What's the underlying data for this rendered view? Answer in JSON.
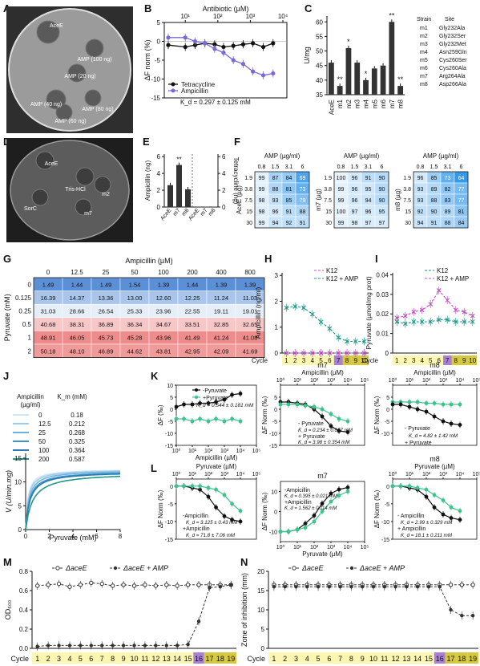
{
  "panels": [
    {
      "id": "A",
      "kind": "photo",
      "labels": [
        "AceE",
        "AMP (100 ng)",
        "AMP (20 ng)",
        "AMP (40 ng)",
        "AMP (80 ng)",
        "AMP (60 ng)"
      ]
    },
    {
      "id": "B",
      "kind": "line",
      "x_top_label": "Antibiotic (µM)",
      "x_ticks": [
        "10¹",
        "10²",
        "10³",
        "10⁴"
      ],
      "y_label": "ΔF norm (%)",
      "y_ticks": [
        "5",
        "0",
        "-5",
        "-10",
        "-15"
      ],
      "series": [
        {
          "name": "Tetracycline",
          "color": "#111111",
          "x": [
            3,
            10,
            20,
            40,
            80,
            150,
            300,
            600,
            1200,
            2500,
            5000
          ],
          "y": [
            -1,
            -1.5,
            -1,
            -0.5,
            -0.8,
            -1.5,
            -1.2,
            -0.8,
            -0.5,
            -1.5,
            -0.5
          ]
        },
        {
          "name": "Ampicillin",
          "color": "#7b68d8",
          "x": [
            3,
            10,
            20,
            40,
            80,
            150,
            300,
            600,
            1200,
            2500,
            5000
          ],
          "y": [
            1,
            1,
            0,
            -0.5,
            -2,
            -3,
            -5,
            -6,
            -8,
            -9,
            -8.5
          ]
        }
      ],
      "kd": "K_d = 0.297 ± 0.125 mM"
    },
    {
      "id": "C",
      "kind": "bar",
      "y_label": "U/mg",
      "y_ticks": [
        "60",
        "55",
        "50",
        "45",
        "40",
        "35"
      ],
      "categories": [
        "AceE",
        "m1",
        "m2",
        "m3",
        "m4",
        "m5",
        "m6",
        "m7",
        "m8"
      ],
      "values": [
        46,
        38,
        51,
        46,
        40,
        44,
        45,
        60,
        38
      ],
      "sig": [
        "",
        "**",
        "*",
        "",
        "*",
        "",
        "",
        "**",
        "**"
      ],
      "table_header": [
        "Strain",
        "Site"
      ],
      "table": [
        [
          "m1",
          "Gly232Ala"
        ],
        [
          "m2",
          "Gly232Ser"
        ],
        [
          "m3",
          "Gly232Met"
        ],
        [
          "m4",
          "Asn259Gln"
        ],
        [
          "m5",
          "Cys260Ser"
        ],
        [
          "m6",
          "Cys260Ala"
        ],
        [
          "m7",
          "Arg264Ala"
        ],
        [
          "m8",
          "Asp266Ala"
        ]
      ]
    },
    {
      "id": "D",
      "kind": "photo",
      "labels": [
        "AceE",
        "SorC",
        "Tris-HCl",
        "m2",
        "m7"
      ]
    },
    {
      "id": "E",
      "kind": "bar",
      "left_label": "Ampicillin (ng)",
      "right_label": "Tetracycline (ng)",
      "y_ticks": [
        "6",
        "4",
        "2",
        "0"
      ],
      "categories_left": [
        "AceE",
        "m7",
        "m8"
      ],
      "values_left": [
        2.6,
        5.0,
        2.1
      ],
      "sig_left": [
        "",
        "**",
        ""
      ],
      "categories_right": [
        "AceE",
        "m7",
        "m8"
      ],
      "values_right": [
        0,
        0,
        0
      ]
    },
    {
      "id": "F",
      "kind": "heatmap",
      "x_label": "AMP (µg/ml)",
      "x_ticks": [
        "0.8",
        "1.5",
        "3.1",
        "6"
      ],
      "y_ticks": [
        "1.9",
        "3.8",
        "7.5",
        "15",
        "30"
      ],
      "maps": [
        {
          "y_label": "AceE (µg)",
          "values": [
            [
              99,
              87,
              84,
              69
            ],
            [
              99,
              88,
              81,
              73
            ],
            [
              98,
              93,
              85,
              79
            ],
            [
              98,
              96,
              91,
              88
            ],
            [
              99,
              94,
              92,
              91
            ]
          ]
        },
        {
          "y_label": "m7 (µg)",
          "values": [
            [
              100,
              96,
              91,
              90
            ],
            [
              99,
              96,
              95,
              90
            ],
            [
              99,
              96,
              94,
              90
            ],
            [
              100,
              97,
              96,
              95
            ],
            [
              99,
              98,
              97,
              97
            ]
          ]
        },
        {
          "y_label": "m8 (µg)",
          "values": [
            [
              96,
              85,
              73,
              64
            ],
            [
              93,
              89,
              82,
              77
            ],
            [
              93,
              88,
              83,
              77
            ],
            [
              92,
              90,
              89,
              81
            ],
            [
              94,
              91,
              88,
              84
            ]
          ]
        }
      ]
    },
    {
      "id": "G",
      "kind": "heatmap",
      "x_label": "Ampicillin (µM)",
      "y_label": "Pyruvate (mM)",
      "x_ticks": [
        "0",
        "12.5",
        "25",
        "50",
        "100",
        "200",
        "400",
        "800"
      ],
      "y_ticks": [
        "0",
        "0.125",
        "0.25",
        "0.5",
        "1",
        "2"
      ],
      "values": [
        [
          1.49,
          1.44,
          1.49,
          1.54,
          1.39,
          1.44,
          1.39,
          1.39
        ],
        [
          16.39,
          14.37,
          13.36,
          13.0,
          12.6,
          12.25,
          11.24,
          11.03
        ],
        [
          31.03,
          28.66,
          26.54,
          25.33,
          23.96,
          22.55,
          19.11,
          19.01
        ],
        [
          40.68,
          38.31,
          36.89,
          36.34,
          34.67,
          33.51,
          32.85,
          32.65
        ],
        [
          48.91,
          46.05,
          45.73,
          45.28,
          43.96,
          41.49,
          41.24,
          41.08
        ],
        [
          50.18,
          48.1,
          46.89,
          44.62,
          43.81,
          42.95,
          42.09,
          41.69
        ]
      ]
    },
    {
      "id": "H",
      "kind": "line",
      "y_label": "Ampicillin (ng/ml)",
      "x_label": "Cycle",
      "y_ticks": [
        "3",
        "2",
        "1",
        "0"
      ],
      "x_ticks": [
        "1",
        "2",
        "3",
        "4",
        "5",
        "6",
        "7",
        "8",
        "9",
        "10"
      ],
      "series": [
        {
          "name": "K12",
          "color": "#c050c0",
          "x": [
            1,
            2,
            3,
            4,
            5,
            6,
            7,
            8,
            9,
            10
          ],
          "y": [
            0,
            0,
            0,
            0,
            0,
            0,
            0,
            0,
            0,
            0
          ]
        },
        {
          "name": "K12 + AMP",
          "color": "#1d9a86",
          "x": [
            1,
            2,
            3,
            4,
            5,
            6,
            7,
            8,
            9,
            10
          ],
          "y": [
            1.75,
            1.8,
            1.75,
            1.5,
            1.2,
            0.95,
            0.6,
            0.45,
            0.45,
            0.45
          ]
        }
      ]
    },
    {
      "id": "I",
      "kind": "line",
      "y_label": "Pyruvate (µmol/mg prot)",
      "x_label": "Cycle",
      "y_ticks": [
        "0.04",
        "0.03",
        "0.02",
        "0.01",
        "0"
      ],
      "x_ticks": [
        "1",
        "2",
        "3",
        "4",
        "5",
        "6",
        "7",
        "8",
        "9",
        "10"
      ],
      "series": [
        {
          "name": "K12",
          "color": "#1d9a86",
          "x": [
            1,
            2,
            3,
            4,
            5,
            6,
            7,
            8,
            9,
            10
          ],
          "y": [
            0.016,
            0.015,
            0.016,
            0.016,
            0.016,
            0.017,
            0.017,
            0.016,
            0.016,
            0.016
          ]
        },
        {
          "name": "K12 + AMP",
          "color": "#c050c0",
          "x": [
            1,
            2,
            3,
            4,
            5,
            6,
            7,
            8,
            9,
            10
          ],
          "y": [
            0.018,
            0.019,
            0.021,
            0.022,
            0.025,
            0.032,
            0.027,
            0.022,
            0.021,
            0.019
          ]
        }
      ]
    },
    {
      "id": "J",
      "kind": "line",
      "legend_title": "Ampicillin (µg/ml)",
      "km_header": "K_m (mM)",
      "y_label": "V (U/min.mg)",
      "x_label": "Pyruvate (mM)",
      "y_ticks": [
        "15",
        "10",
        "5",
        "0"
      ],
      "x_ticks": [
        "0",
        "2",
        "4",
        "6",
        "8"
      ],
      "series": [
        {
          "name": "0",
          "km": "0.18",
          "color": "#cfe5f5",
          "vmax": 12.7
        },
        {
          "name": "12.5",
          "km": "0.212",
          "color": "#9fcdeb",
          "vmax": 12.6
        },
        {
          "name": "25",
          "km": "0.268",
          "color": "#6cb4dd",
          "vmax": 12.5
        },
        {
          "name": "50",
          "km": "0.325",
          "color": "#3a95c9",
          "vmax": 12.3
        },
        {
          "name": "100",
          "km": "0.364",
          "color": "#2b7ab0",
          "vmax": 12.2
        },
        {
          "name": "200",
          "km": "0.587",
          "color": "#1d9a86",
          "vmax": 12.0
        }
      ]
    },
    {
      "id": "K",
      "kind": "line",
      "x_label": "Ampicillin (µM)",
      "y_label": "ΔF (‰)",
      "y_ticks": [
        "10",
        "5",
        "0",
        "-5",
        "-10",
        "-15"
      ],
      "legend": [
        "-Pyruvate",
        "+Pyruvate"
      ],
      "kd": "K_d = 0.544 ± 0.181 mM",
      "series": [
        {
          "name": "-Pyruvate",
          "color": "#111111",
          "x": [
            1,
            3,
            10,
            30,
            100,
            300,
            1000,
            3000,
            10000
          ],
          "y": [
            1,
            2,
            2,
            2.5,
            2.5,
            3,
            4,
            6,
            6.5
          ]
        },
        {
          "name": "+Pyruvate",
          "color": "#3cc48c",
          "x": [
            1,
            3,
            10,
            30,
            100,
            300,
            1000,
            3000,
            10000
          ],
          "y": [
            -4,
            -4,
            -5,
            -4,
            -5,
            -4,
            -5,
            -4,
            -5
          ]
        }
      ],
      "subpanels": [
        {
          "title": "m7",
          "x_label": "Ampicillin (µM)",
          "kd1": "K_d = 0.234 ± 0.067 mM",
          "kd2": "K_d = 3.98 ± 0.354 mM",
          "legend": [
            "- Pyruvate",
            "+ Pyruvate"
          ]
        },
        {
          "title": "m8",
          "x_label": "Ampicillin (µM)",
          "kd1": "K_d = 4.82 ± 1.42 mM",
          "legend": [
            "- Pyruvate",
            "+ Pyruvate"
          ]
        }
      ]
    },
    {
      "id": "L",
      "kind": "line",
      "x_label": "Pyruvate (µM)",
      "y_label": "ΔF Norm (‰)",
      "y_ticks": [
        "0",
        "-5",
        "-10",
        "-15"
      ],
      "legend": [
        "-Ampicillin",
        "+Ampicillin"
      ],
      "kd1": "K_d = 3.125 ± 0.43 mM",
      "kd2": "K_d = 71.8 ± 7.06 mM",
      "series": [
        {
          "name": "-Ampicillin",
          "color": "#111111",
          "x": [
            1,
            3,
            10,
            30,
            100,
            300,
            1000,
            3000,
            10000
          ],
          "y": [
            0,
            0,
            -0.5,
            -1,
            -3,
            -6,
            -8.5,
            -9.5,
            -10
          ]
        },
        {
          "name": "+Ampicillin",
          "color": "#3cc48c",
          "x": [
            1,
            3,
            10,
            30,
            100,
            300,
            1000,
            3000,
            10000
          ],
          "y": [
            0,
            0,
            0,
            0,
            -0.5,
            -1,
            -2.5,
            -5,
            -7
          ]
        }
      ],
      "subpanels": [
        {
          "title": "m7",
          "x_label": "Pyruvate (µM)",
          "kd1": "K_d = 0.395 ± 0.021 mM",
          "kd2": "K_d = 1.562 ± 0.114 mM",
          "legend": [
            "-Ampicillin",
            "+Ampicillin"
          ]
        },
        {
          "title": "m8",
          "x_label": "Pyruvate (µM)",
          "kd1": "K_d = 2.99 ± 0.329 mM",
          "kd2": "K_d = 18.1 ± 0.211 mM",
          "legend": [
            "- Ampicillin",
            "+ Ampicillin"
          ]
        }
      ]
    },
    {
      "id": "M",
      "kind": "line",
      "y_label": "OD₆₀₀",
      "x_label": "Cycle",
      "y_ticks": [
        "0.8",
        "0.6",
        "0.4",
        "0.2",
        "0.0"
      ],
      "x_ticks": [
        "1",
        "2",
        "3",
        "4",
        "5",
        "6",
        "7",
        "8",
        "9",
        "10",
        "11",
        "12",
        "13",
        "14",
        "15",
        "16",
        "17",
        "18",
        "19"
      ],
      "series": [
        {
          "name": "ΔaceE",
          "color": "#333333",
          "x": [
            1,
            2,
            3,
            4,
            5,
            6,
            7,
            8,
            9,
            10,
            11,
            12,
            13,
            14,
            15,
            16,
            17,
            18,
            19
          ],
          "y": [
            0.65,
            0.66,
            0.67,
            0.64,
            0.66,
            0.68,
            0.67,
            0.65,
            0.66,
            0.65,
            0.66,
            0.65,
            0.66,
            0.65,
            0.66,
            0.66,
            0.66,
            0.66,
            0.66
          ]
        },
        {
          "name": "ΔaceE + AMP",
          "color": "#333333",
          "x": [
            1,
            2,
            3,
            4,
            5,
            6,
            7,
            8,
            9,
            10,
            11,
            12,
            13,
            14,
            15,
            16,
            17,
            18,
            19
          ],
          "y": [
            0.02,
            0.03,
            0.03,
            0.03,
            0.03,
            0.03,
            0.03,
            0.03,
            0.03,
            0.03,
            0.03,
            0.03,
            0.03,
            0.03,
            0.04,
            0.28,
            0.63,
            0.64,
            0.66
          ]
        }
      ]
    },
    {
      "id": "N",
      "kind": "line",
      "y_label": "Zone of inhibition (mm)",
      "x_label": "Cycle",
      "y_ticks": [
        "20",
        "15",
        "10",
        "5",
        "0"
      ],
      "x_ticks": [
        "1",
        "2",
        "3",
        "4",
        "5",
        "6",
        "7",
        "8",
        "9",
        "10",
        "11",
        "12",
        "13",
        "14",
        "15",
        "16",
        "17",
        "18",
        "19"
      ],
      "series": [
        {
          "name": "ΔaceE",
          "color": "#333333",
          "x": [
            1,
            2,
            3,
            4,
            5,
            6,
            7,
            8,
            9,
            10,
            11,
            12,
            13,
            14,
            15,
            16,
            17,
            18,
            19
          ],
          "y": [
            16.5,
            16.5,
            16.5,
            16.5,
            16.5,
            16.5,
            16.5,
            16.5,
            16.5,
            16.5,
            16.5,
            16.5,
            16.5,
            16.5,
            16.5,
            16.5,
            16.5,
            16.5,
            16.5
          ]
        },
        {
          "name": "ΔaceE + AMP",
          "color": "#333333",
          "x": [
            1,
            2,
            3,
            4,
            5,
            6,
            7,
            8,
            9,
            10,
            11,
            12,
            13,
            14,
            15,
            16,
            17,
            18,
            19
          ],
          "y": [
            16,
            16,
            16,
            16,
            16,
            16,
            16,
            16,
            16,
            16,
            16,
            16,
            16,
            16,
            16,
            16,
            10,
            8.5,
            8.5
          ]
        }
      ]
    }
  ]
}
